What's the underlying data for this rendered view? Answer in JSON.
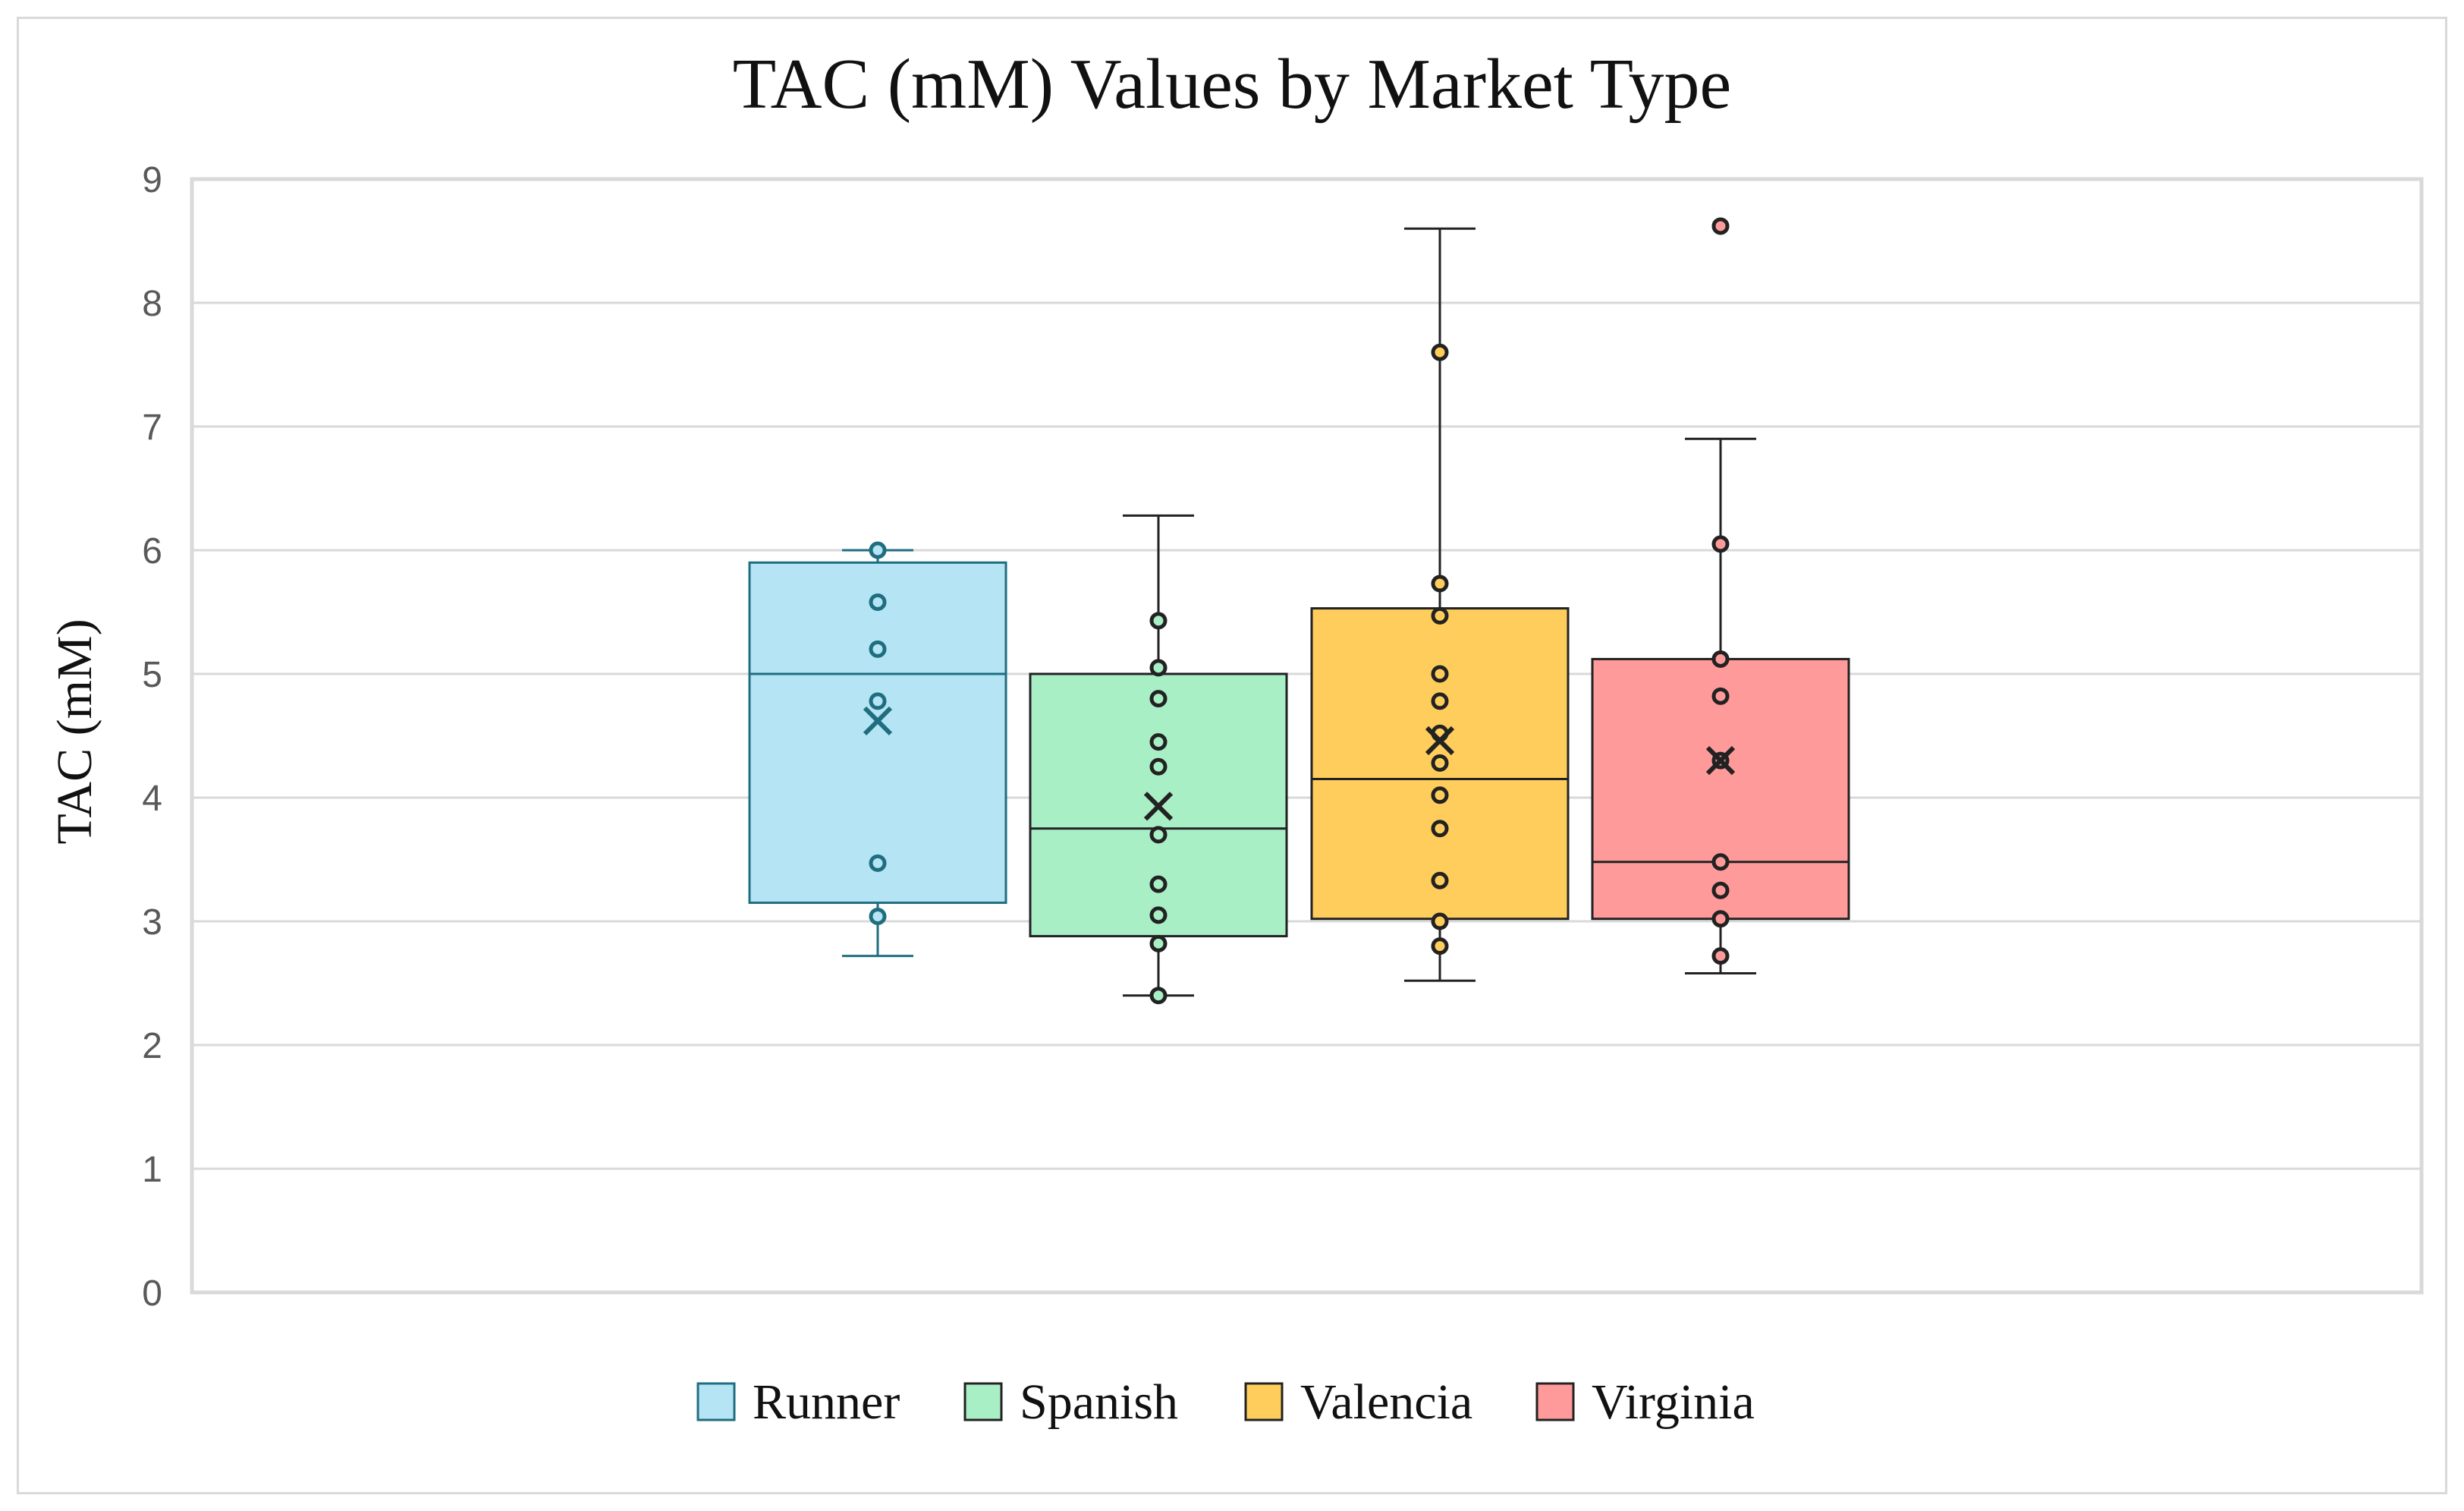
{
  "chart_data": {
    "type": "box",
    "title": "TAC (mM) Values by Market Type",
    "xlabel": "",
    "ylabel": "TAC (mM)",
    "ylim": [
      0,
      9
    ],
    "yticks": [
      0,
      1,
      2,
      3,
      4,
      5,
      6,
      7,
      8,
      9
    ],
    "grid": true,
    "legend_position": "bottom",
    "series": [
      {
        "name": "Runner",
        "fill": "#b5e4f5",
        "stroke": "#1f6e80",
        "min": 2.72,
        "q1": 3.15,
        "median": 5.0,
        "q3": 5.9,
        "max": 6.0,
        "mean": 4.62,
        "points": [
          6.0,
          5.58,
          5.2,
          4.78,
          3.47,
          3.04
        ]
      },
      {
        "name": "Spanish",
        "fill": "#a9efc6",
        "stroke": "#222222",
        "min": 2.4,
        "q1": 2.88,
        "median": 3.75,
        "q3": 5.0,
        "max": 6.28,
        "mean": 3.93,
        "points": [
          5.43,
          5.05,
          4.8,
          4.45,
          4.25,
          3.7,
          3.3,
          3.05,
          2.82,
          2.4
        ]
      },
      {
        "name": "Valencia",
        "fill": "#ffcd5c",
        "stroke": "#222222",
        "min": 2.52,
        "q1": 3.02,
        "median": 4.15,
        "q3": 5.53,
        "max": 8.6,
        "mean": 4.46,
        "points": [
          7.6,
          5.73,
          5.47,
          5.0,
          4.78,
          4.52,
          4.28,
          4.02,
          3.75,
          3.33,
          3.0,
          2.8
        ]
      },
      {
        "name": "Virginia",
        "fill": "#ff9a9a",
        "stroke": "#222222",
        "min": 2.58,
        "q1": 3.02,
        "median": 3.48,
        "q3": 5.12,
        "max": 6.9,
        "mean": 4.3,
        "points": [
          8.62,
          6.05,
          5.12,
          4.82,
          4.3,
          3.48,
          3.25,
          3.02,
          2.72
        ]
      }
    ]
  }
}
